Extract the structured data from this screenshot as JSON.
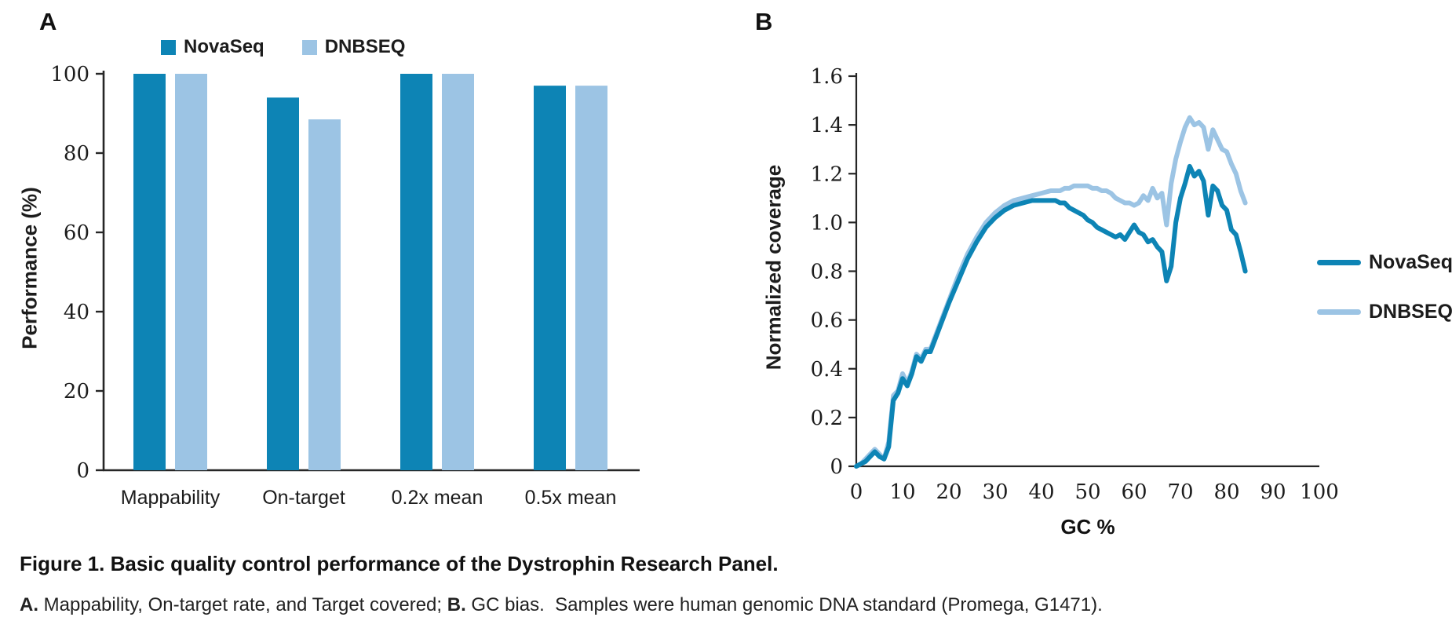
{
  "colors": {
    "novaseq": "#0d84b5",
    "dnbseq": "#9cc4e4",
    "axis": "#262626",
    "text": "#1c1c1c"
  },
  "panels": {
    "a": "A",
    "b": "B"
  },
  "chart_data": [
    {
      "type": "bar",
      "panel": "A",
      "title": "",
      "categories": [
        "Mappability",
        "On-target",
        "0.2x mean",
        "0.5x mean"
      ],
      "series": [
        {
          "name": "NovaSeq",
          "color": "#0d84b5",
          "values": [
            100,
            94,
            100,
            97
          ]
        },
        {
          "name": "DNBSEQ",
          "color": "#9cc4e4",
          "values": [
            100,
            88.5,
            100,
            97
          ]
        }
      ],
      "xlabel": "",
      "ylabel": "Performance (%)",
      "ylim": [
        0,
        100
      ],
      "yticks": [
        0,
        20,
        40,
        60,
        80,
        100
      ],
      "grid": false,
      "legend_position": "top"
    },
    {
      "type": "line",
      "panel": "B",
      "title": "",
      "xlabel": "GC %",
      "ylabel": "Normalized coverage",
      "xlim": [
        0,
        100
      ],
      "ylim": [
        0,
        1.6
      ],
      "xticks": [
        0,
        10,
        20,
        30,
        40,
        50,
        60,
        70,
        80,
        90,
        100
      ],
      "yticks": [
        0,
        0.2,
        0.4,
        0.6,
        0.8,
        1.0,
        1.2,
        1.4,
        1.6
      ],
      "grid": false,
      "legend_position": "right",
      "series": [
        {
          "name": "NovaSeq",
          "color": "#0d84b5",
          "points": [
            [
              0,
              0
            ],
            [
              1,
              0.01
            ],
            [
              2,
              0.02
            ],
            [
              3,
              0.04
            ],
            [
              4,
              0.06
            ],
            [
              5,
              0.04
            ],
            [
              6,
              0.03
            ],
            [
              7,
              0.08
            ],
            [
              8,
              0.27
            ],
            [
              9,
              0.3
            ],
            [
              10,
              0.36
            ],
            [
              11,
              0.33
            ],
            [
              12,
              0.38
            ],
            [
              13,
              0.45
            ],
            [
              14,
              0.43
            ],
            [
              15,
              0.47
            ],
            [
              16,
              0.47
            ],
            [
              17,
              0.52
            ],
            [
              18,
              0.57
            ],
            [
              19,
              0.62
            ],
            [
              20,
              0.67
            ],
            [
              22,
              0.76
            ],
            [
              24,
              0.85
            ],
            [
              26,
              0.92
            ],
            [
              28,
              0.98
            ],
            [
              30,
              1.02
            ],
            [
              32,
              1.05
            ],
            [
              34,
              1.07
            ],
            [
              36,
              1.08
            ],
            [
              38,
              1.09
            ],
            [
              40,
              1.09
            ],
            [
              42,
              1.09
            ],
            [
              43,
              1.09
            ],
            [
              44,
              1.08
            ],
            [
              45,
              1.08
            ],
            [
              46,
              1.06
            ],
            [
              47,
              1.05
            ],
            [
              48,
              1.04
            ],
            [
              49,
              1.03
            ],
            [
              50,
              1.01
            ],
            [
              51,
              1.0
            ],
            [
              52,
              0.98
            ],
            [
              53,
              0.97
            ],
            [
              54,
              0.96
            ],
            [
              55,
              0.95
            ],
            [
              56,
              0.94
            ],
            [
              57,
              0.95
            ],
            [
              58,
              0.93
            ],
            [
              59,
              0.96
            ],
            [
              60,
              0.99
            ],
            [
              61,
              0.96
            ],
            [
              62,
              0.95
            ],
            [
              63,
              0.92
            ],
            [
              64,
              0.93
            ],
            [
              65,
              0.9
            ],
            [
              66,
              0.88
            ],
            [
              67,
              0.76
            ],
            [
              68,
              0.82
            ],
            [
              69,
              1.0
            ],
            [
              70,
              1.1
            ],
            [
              71,
              1.16
            ],
            [
              72,
              1.23
            ],
            [
              73,
              1.19
            ],
            [
              74,
              1.21
            ],
            [
              75,
              1.17
            ],
            [
              76,
              1.03
            ],
            [
              77,
              1.15
            ],
            [
              78,
              1.13
            ],
            [
              79,
              1.07
            ],
            [
              80,
              1.05
            ],
            [
              81,
              0.97
            ],
            [
              82,
              0.95
            ],
            [
              83,
              0.88
            ],
            [
              84,
              0.8
            ]
          ]
        },
        {
          "name": "DNBSEQ",
          "color": "#9cc4e4",
          "points": [
            [
              0,
              0
            ],
            [
              1,
              0.01
            ],
            [
              2,
              0.03
            ],
            [
              3,
              0.05
            ],
            [
              4,
              0.07
            ],
            [
              5,
              0.05
            ],
            [
              6,
              0.03
            ],
            [
              7,
              0.1
            ],
            [
              8,
              0.29
            ],
            [
              9,
              0.31
            ],
            [
              10,
              0.38
            ],
            [
              11,
              0.34
            ],
            [
              12,
              0.39
            ],
            [
              13,
              0.46
            ],
            [
              14,
              0.44
            ],
            [
              15,
              0.48
            ],
            [
              16,
              0.48
            ],
            [
              17,
              0.53
            ],
            [
              18,
              0.58
            ],
            [
              19,
              0.63
            ],
            [
              20,
              0.68
            ],
            [
              22,
              0.78
            ],
            [
              24,
              0.87
            ],
            [
              26,
              0.94
            ],
            [
              28,
              1.0
            ],
            [
              30,
              1.04
            ],
            [
              32,
              1.07
            ],
            [
              34,
              1.09
            ],
            [
              36,
              1.1
            ],
            [
              38,
              1.11
            ],
            [
              40,
              1.12
            ],
            [
              42,
              1.13
            ],
            [
              43,
              1.13
            ],
            [
              44,
              1.13
            ],
            [
              45,
              1.14
            ],
            [
              46,
              1.14
            ],
            [
              47,
              1.15
            ],
            [
              48,
              1.15
            ],
            [
              49,
              1.15
            ],
            [
              50,
              1.15
            ],
            [
              51,
              1.14
            ],
            [
              52,
              1.14
            ],
            [
              53,
              1.13
            ],
            [
              54,
              1.13
            ],
            [
              55,
              1.12
            ],
            [
              56,
              1.1
            ],
            [
              57,
              1.09
            ],
            [
              58,
              1.08
            ],
            [
              59,
              1.08
            ],
            [
              60,
              1.07
            ],
            [
              61,
              1.08
            ],
            [
              62,
              1.11
            ],
            [
              63,
              1.09
            ],
            [
              64,
              1.14
            ],
            [
              65,
              1.1
            ],
            [
              66,
              1.12
            ],
            [
              67,
              0.99
            ],
            [
              68,
              1.16
            ],
            [
              69,
              1.26
            ],
            [
              70,
              1.33
            ],
            [
              71,
              1.39
            ],
            [
              72,
              1.43
            ],
            [
              73,
              1.4
            ],
            [
              74,
              1.41
            ],
            [
              75,
              1.39
            ],
            [
              76,
              1.3
            ],
            [
              77,
              1.38
            ],
            [
              78,
              1.34
            ],
            [
              79,
              1.3
            ],
            [
              80,
              1.29
            ],
            [
              81,
              1.24
            ],
            [
              82,
              1.2
            ],
            [
              83,
              1.13
            ],
            [
              84,
              1.08
            ]
          ]
        }
      ]
    }
  ],
  "caption": {
    "line1": "Figure 1. Basic quality control performance of the Dystrophin Research Panel.",
    "parts": [
      {
        "t": "A."
      },
      {
        "t": " Mappability, On-target rate, and Target covered; "
      },
      {
        "t": "B."
      },
      {
        "t": " GC bias.  Samples were human genomic DNA standard (Promega, G1471)."
      }
    ]
  }
}
